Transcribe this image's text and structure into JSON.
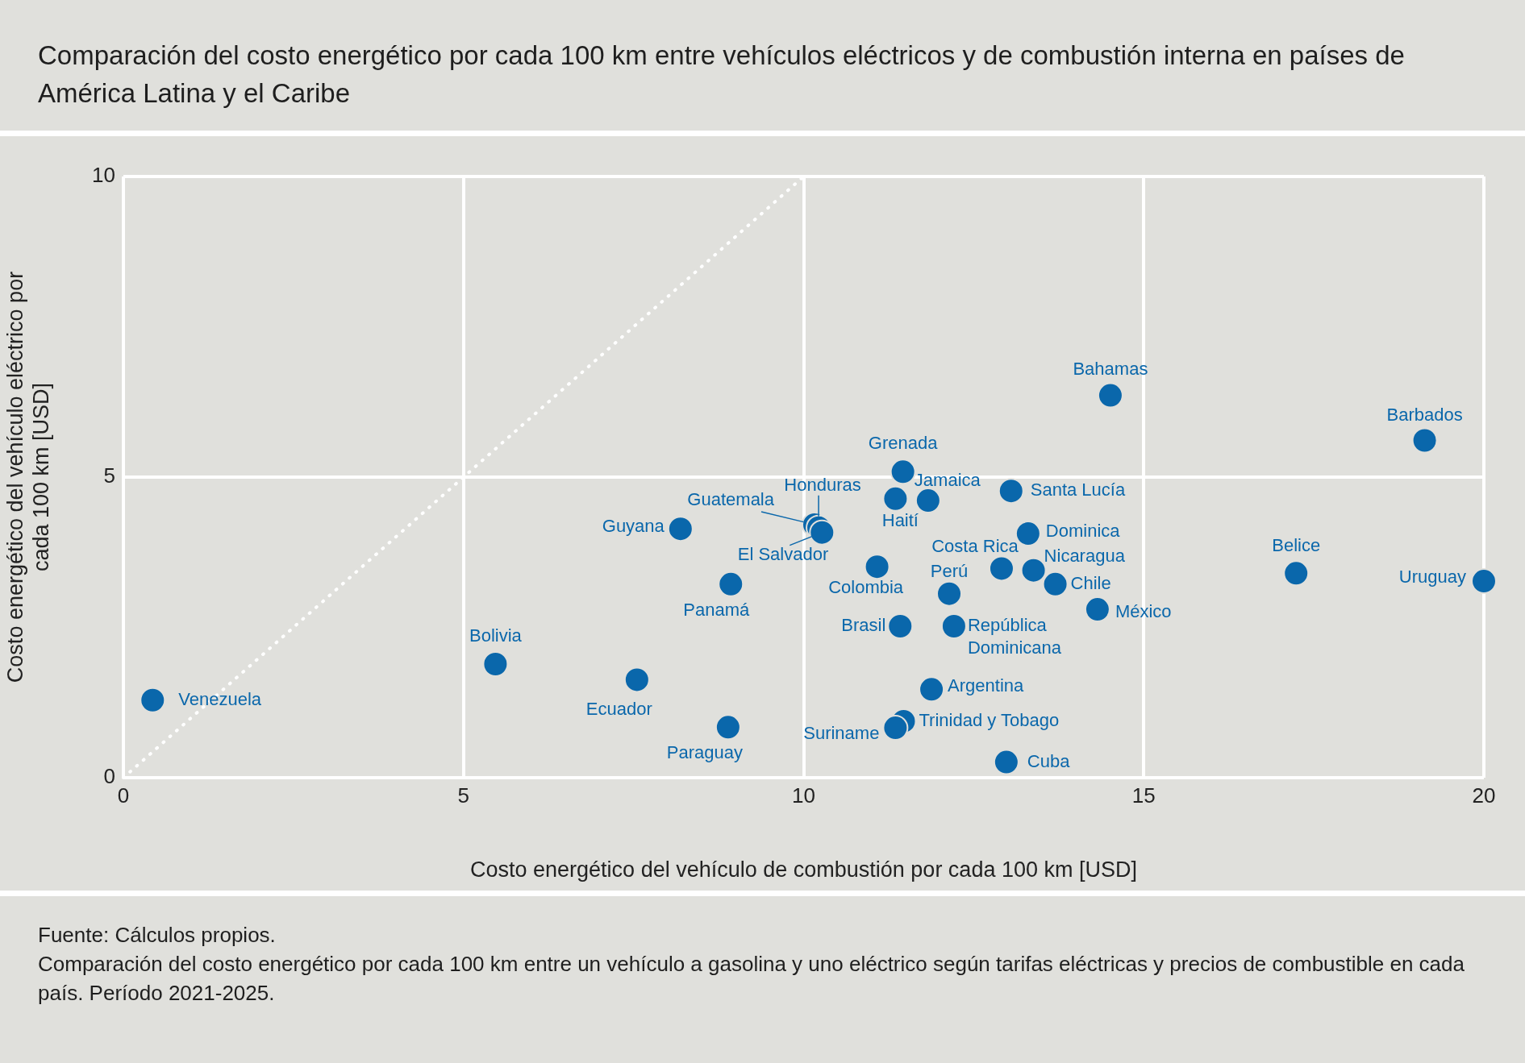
{
  "chart_data": {
    "type": "scatter",
    "title": "Comparación del costo energético por cada 100 km entre vehículos eléctricos y de combustión interna en países de América Latina y el Caribe",
    "xlabel": "Costo energético del vehículo de combustión por cada 100 km [USD]",
    "ylabel": "Costo energético del vehículo eléctrico por cada 100 km [USD]",
    "xlim": [
      0,
      20
    ],
    "ylim": [
      0,
      10
    ],
    "xticks": [
      0,
      5,
      10,
      15,
      20
    ],
    "yticks": [
      0,
      5,
      10
    ],
    "grid": true,
    "marker": "circle",
    "series": [
      {
        "color": "#0a67ab",
        "x": [
          0.43,
          5.47,
          7.55,
          8.89,
          8.19,
          8.93,
          10.16,
          10.22,
          10.27,
          11.08,
          11.35,
          11.46,
          11.83,
          11.42,
          12.14,
          12.21,
          11.88,
          11.47,
          11.35,
          12.98,
          12.91,
          13.38,
          13.7,
          13.3,
          13.05,
          14.32,
          14.51,
          17.24,
          19.13,
          20.0
        ],
        "values": [
          1.29,
          1.89,
          1.63,
          0.84,
          4.14,
          3.22,
          4.21,
          4.16,
          4.08,
          3.51,
          4.64,
          5.09,
          4.61,
          2.52,
          3.06,
          2.52,
          1.47,
          0.94,
          0.83,
          0.26,
          3.48,
          3.45,
          3.22,
          4.06,
          4.77,
          2.8,
          6.36,
          3.4,
          5.61,
          3.27
        ]
      },
      {
        "type": "line",
        "color": "#ffffff",
        "line_style": "dotted",
        "marker": "none",
        "x": [
          0,
          10
        ],
        "values": [
          0,
          10
        ]
      }
    ],
    "annotations": [
      {
        "text": "Venezuela",
        "x": 0.43,
        "y": 1.29
      },
      {
        "text": "Bolivia",
        "x": 5.47,
        "y": 1.89
      },
      {
        "text": "Ecuador",
        "x": 7.55,
        "y": 1.63
      },
      {
        "text": "Paraguay",
        "x": 8.89,
        "y": 0.84
      },
      {
        "text": "Guyana",
        "x": 8.19,
        "y": 4.14
      },
      {
        "text": "Panamá",
        "x": 8.93,
        "y": 3.22
      },
      {
        "text": "Guatemala",
        "x": 10.16,
        "y": 4.21
      },
      {
        "text": "Honduras",
        "x": 10.22,
        "y": 4.16
      },
      {
        "text": "El Salvador",
        "x": 10.27,
        "y": 4.08
      },
      {
        "text": "Colombia",
        "x": 11.08,
        "y": 3.51
      },
      {
        "text": "Haití",
        "x": 11.35,
        "y": 4.64
      },
      {
        "text": "Grenada",
        "x": 11.46,
        "y": 5.09
      },
      {
        "text": "Jamaica",
        "x": 11.83,
        "y": 4.61
      },
      {
        "text": "Brasil",
        "x": 11.42,
        "y": 2.52
      },
      {
        "text": "Perú",
        "x": 12.14,
        "y": 3.06
      },
      {
        "text": "República Dominicana",
        "x": 12.21,
        "y": 2.52
      },
      {
        "text": "Argentina",
        "x": 11.88,
        "y": 1.47
      },
      {
        "text": "Trinidad y Tobago",
        "x": 11.47,
        "y": 0.94
      },
      {
        "text": "Suriname",
        "x": 11.35,
        "y": 0.83
      },
      {
        "text": "Cuba",
        "x": 12.98,
        "y": 0.26
      },
      {
        "text": "Costa Rica",
        "x": 12.91,
        "y": 3.48
      },
      {
        "text": "Nicaragua",
        "x": 13.38,
        "y": 3.45
      },
      {
        "text": "Chile",
        "x": 13.7,
        "y": 3.22
      },
      {
        "text": "Dominica",
        "x": 13.3,
        "y": 4.06
      },
      {
        "text": "Santa Lucía",
        "x": 13.05,
        "y": 4.77
      },
      {
        "text": "México",
        "x": 14.32,
        "y": 2.8
      },
      {
        "text": "Bahamas",
        "x": 14.51,
        "y": 6.36
      },
      {
        "text": "Belice",
        "x": 17.24,
        "y": 3.4
      },
      {
        "text": "Barbados",
        "x": 19.13,
        "y": 5.61
      },
      {
        "text": "Uruguay",
        "x": 20.0,
        "y": 3.27
      },
      "Fuente: Cálculos propios.",
      "Comparación del costo energético por cada 100 km entre un vehículo a gasolina y uno eléctrico según tarifas eléctricas y precios de combustible en cada país. Período 2021-2025."
    ]
  }
}
